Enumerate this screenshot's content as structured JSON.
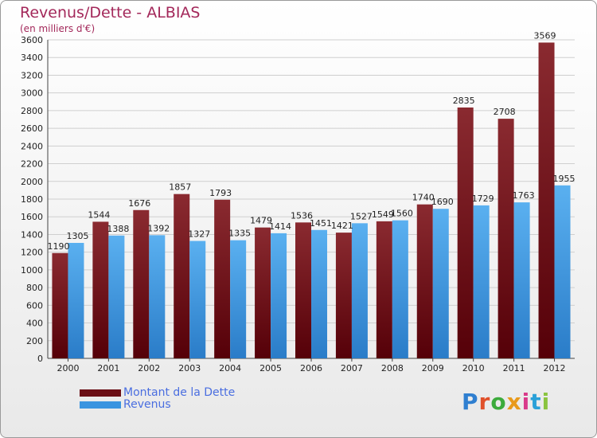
{
  "title": "Revenus/Dette - ALBIAS",
  "subtitle": "(en milliers d'€)",
  "logo": {
    "letters": [
      {
        "ch": "P",
        "color": "#2f7fd0"
      },
      {
        "ch": "r",
        "color": "#e0502a"
      },
      {
        "ch": "o",
        "color": "#3cab3c"
      },
      {
        "ch": "x",
        "color": "#e89a1b"
      },
      {
        "ch": "i",
        "color": "#d93a8a"
      },
      {
        "ch": "t",
        "color": "#2aa0d8"
      },
      {
        "ch": "i",
        "color": "#8ac43f"
      }
    ]
  },
  "chart_data": {
    "type": "bar",
    "categories": [
      "2000",
      "2001",
      "2002",
      "2003",
      "2004",
      "2005",
      "2006",
      "2007",
      "2008",
      "2009",
      "2010",
      "2011",
      "2012"
    ],
    "series": [
      {
        "name": "Montant de la Dette",
        "color": "#6b0f15",
        "values": [
          1190,
          1544,
          1676,
          1857,
          1793,
          1479,
          1536,
          1421,
          1549,
          1740,
          2835,
          2708,
          3569
        ]
      },
      {
        "name": "Revenus",
        "color": "#3a94e0",
        "values": [
          1305,
          1388,
          1392,
          1327,
          1335,
          1414,
          1451,
          1527,
          1560,
          1690,
          1729,
          1763,
          1955
        ]
      }
    ],
    "ylim": [
      0,
      3600
    ],
    "yticks": [
      0,
      200,
      400,
      600,
      800,
      1000,
      1200,
      1400,
      1600,
      1800,
      2000,
      2200,
      2400,
      2600,
      2800,
      3000,
      3200,
      3400,
      3600
    ],
    "grid": true,
    "legend_position": "bottom-left"
  }
}
